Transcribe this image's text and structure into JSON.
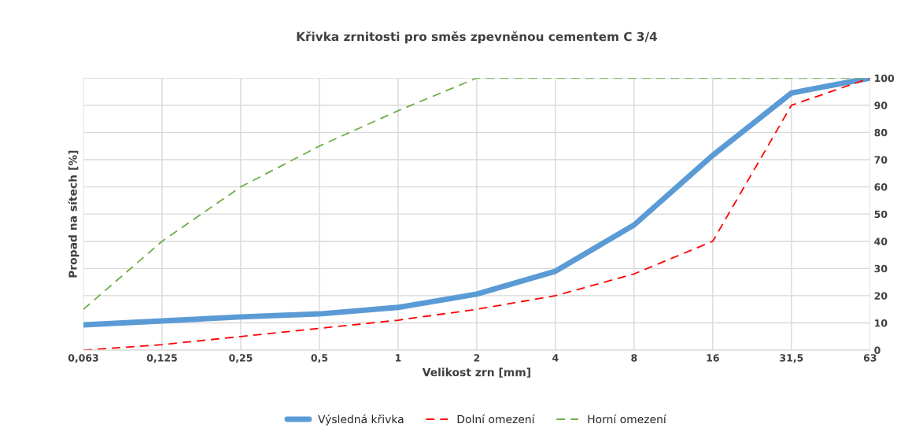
{
  "chart_data": {
    "type": "line",
    "title": "Křivka zrnitosti pro směs zpevněnou cementem C 3/4",
    "xlabel": "Velikost zrn [mm]",
    "ylabel": "Propad na sítech [%]",
    "categories": [
      "0,063",
      "0,125",
      "0,25",
      "0,5",
      "1",
      "2",
      "4",
      "8",
      "16",
      "31,5",
      "63"
    ],
    "series": [
      {
        "name": "Výsledná křivka",
        "color": "#5b9bd5",
        "line_style": "solid",
        "values": [
          9.3,
          10.7,
          12.2,
          13.3,
          15.7,
          20.6,
          29,
          46,
          71.6,
          94.5,
          100
        ]
      },
      {
        "name": "Dolní omezení",
        "color": "#ff0000",
        "line_style": "dashed",
        "values": [
          0,
          2,
          5,
          8,
          11,
          15,
          20,
          28,
          40,
          90,
          100
        ]
      },
      {
        "name": "Horní omezení",
        "color": "#70ad47",
        "line_style": "dashed",
        "values": [
          15,
          40,
          60,
          75,
          88,
          100,
          100,
          100,
          100,
          100,
          100
        ]
      }
    ],
    "ylim": [
      0,
      100
    ],
    "yticks": [
      0,
      10,
      20,
      30,
      40,
      50,
      60,
      70,
      80,
      90,
      100
    ],
    "grid": true,
    "legend": "bottom"
  }
}
